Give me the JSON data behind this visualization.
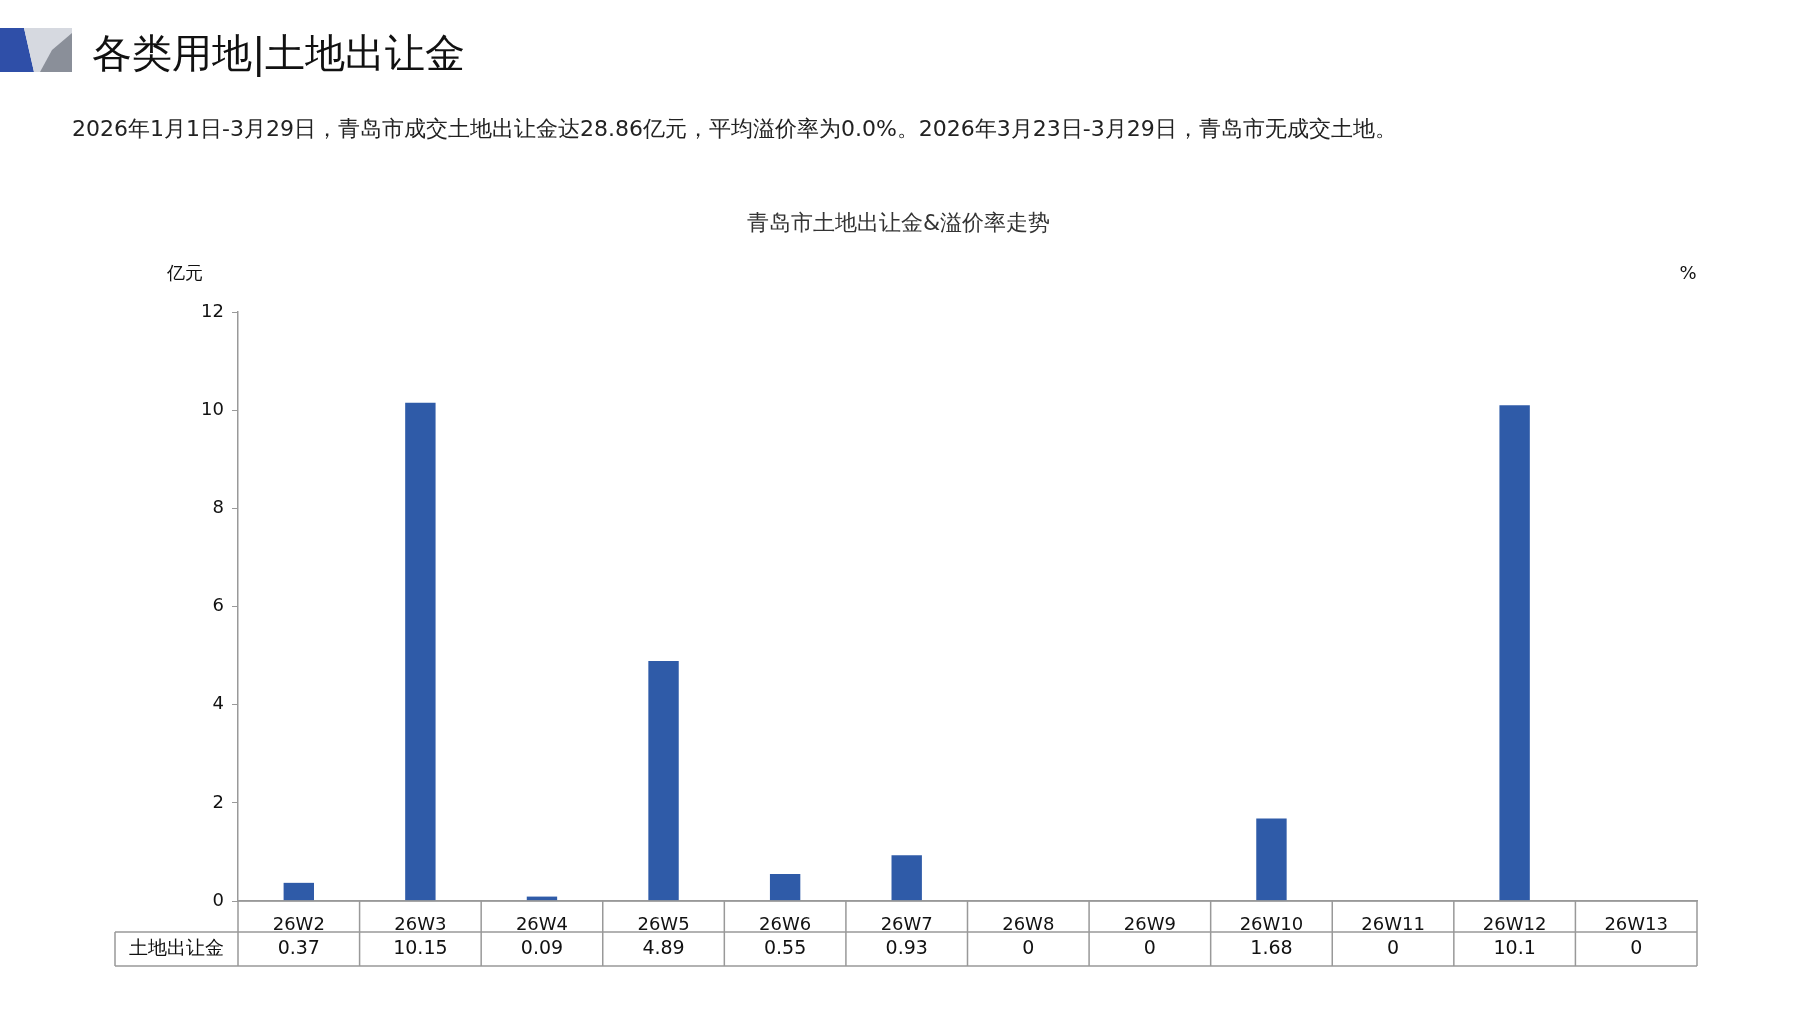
{
  "chart_data": {
    "type": "bar",
    "title": "各类用地|土地出让金",
    "subtitle": "青岛市土地出让金&溢价率走势",
    "annotations": [
      "2026年1月1日-3月29日，青岛市成交土地出让金达28.86亿元，平均溢价率为0.0%。2026年3月23日-3月29日，青岛市无成交土地。"
    ],
    "ylabel": "亿元",
    "y2label": "%",
    "categories": [
      "26W2",
      "26W3",
      "26W4",
      "26W5",
      "26W6",
      "26W7",
      "26W8",
      "26W9",
      "26W10",
      "26W11",
      "26W12",
      "26W13"
    ],
    "series": [
      {
        "name": "土地出让金",
        "color": "#2f5ba8",
        "values": [
          0.37,
          10.15,
          0.09,
          4.89,
          0.55,
          0.93,
          0,
          0,
          1.68,
          0,
          10.1,
          0
        ]
      }
    ],
    "ylim": [
      0,
      12
    ],
    "yticks": [
      0,
      2,
      4,
      6,
      8,
      10,
      12
    ],
    "grid": false,
    "legend": false,
    "data_labels": true
  }
}
